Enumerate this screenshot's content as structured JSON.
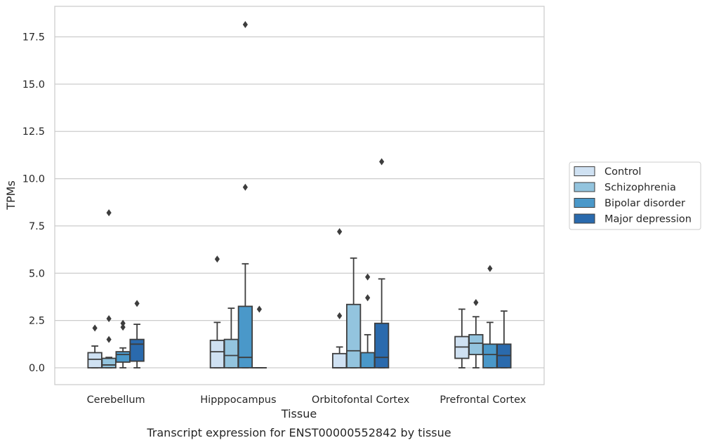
{
  "chart_data": {
    "type": "box",
    "xlabel": "Tissue",
    "ylabel": "TPMs",
    "caption": "Transcript expression for ENST00000552842 by tissue",
    "categories": [
      "Cerebellum",
      "Hipppocampus",
      "Orbitofontal Cortex",
      "Prefrontal Cortex"
    ],
    "ylim": [
      -0.9,
      19.2
    ],
    "yticks": [
      0.0,
      2.5,
      5.0,
      7.5,
      10.0,
      12.5,
      15.0,
      17.5
    ],
    "ytick_labels": [
      "0.0",
      "2.5",
      "5.0",
      "7.5",
      "10.0",
      "12.5",
      "15.0",
      "17.5"
    ],
    "grid": "horizontal",
    "legend_position": "right",
    "series": [
      {
        "name": "Control",
        "color": "#cfe1f2",
        "boxes": [
          {
            "whisker_low": 0.0,
            "q1": 0.0,
            "median": 0.45,
            "q3": 0.8,
            "whisker_high": 1.15,
            "outliers": [
              2.1
            ]
          },
          {
            "whisker_low": 0.0,
            "q1": 0.0,
            "median": 0.85,
            "q3": 1.45,
            "whisker_high": 2.4,
            "outliers": [
              5.75
            ]
          },
          {
            "whisker_low": 0.0,
            "q1": 0.0,
            "median": 0.0,
            "q3": 0.75,
            "whisker_high": 1.1,
            "outliers": [
              2.75,
              7.2
            ]
          },
          {
            "whisker_low": 0.0,
            "q1": 0.5,
            "median": 1.1,
            "q3": 1.65,
            "whisker_high": 3.1,
            "outliers": []
          }
        ]
      },
      {
        "name": "Schizophrenia",
        "color": "#93c4de",
        "boxes": [
          {
            "whisker_low": 0.0,
            "q1": 0.0,
            "median": 0.15,
            "q3": 0.5,
            "whisker_high": 0.55,
            "outliers": [
              1.5,
              2.6,
              8.2
            ]
          },
          {
            "whisker_low": 0.0,
            "q1": 0.0,
            "median": 0.65,
            "q3": 1.5,
            "whisker_high": 3.15,
            "outliers": []
          },
          {
            "whisker_low": 0.0,
            "q1": 0.0,
            "median": 0.9,
            "q3": 3.35,
            "whisker_high": 5.8,
            "outliers": []
          },
          {
            "whisker_low": 0.0,
            "q1": 0.7,
            "median": 1.3,
            "q3": 1.75,
            "whisker_high": 2.7,
            "outliers": [
              3.45
            ]
          }
        ]
      },
      {
        "name": "Bipolar disorder",
        "color": "#4a98c9",
        "boxes": [
          {
            "whisker_low": 0.0,
            "q1": 0.3,
            "median": 0.7,
            "q3": 0.85,
            "whisker_high": 1.05,
            "outliers": [
              2.15,
              2.35
            ]
          },
          {
            "whisker_low": 0.0,
            "q1": 0.0,
            "median": 0.55,
            "q3": 3.25,
            "whisker_high": 5.5,
            "outliers": [
              9.55,
              18.15
            ]
          },
          {
            "whisker_low": 0.0,
            "q1": 0.0,
            "median": 0.0,
            "q3": 0.8,
            "whisker_high": 1.75,
            "outliers": [
              3.7,
              4.8
            ]
          },
          {
            "whisker_low": 0.0,
            "q1": 0.0,
            "median": 0.7,
            "q3": 1.25,
            "whisker_high": 2.4,
            "outliers": [
              5.25
            ]
          }
        ]
      },
      {
        "name": "Major depression",
        "color": "#2a6aad",
        "boxes": [
          {
            "whisker_low": 0.0,
            "q1": 0.35,
            "median": 1.25,
            "q3": 1.5,
            "whisker_high": 2.3,
            "outliers": [
              3.4
            ]
          },
          {
            "whisker_low": 0.0,
            "q1": 0.0,
            "median": 0.0,
            "q3": 0.0,
            "whisker_high": 0.0,
            "outliers": [
              3.1
            ]
          },
          {
            "whisker_low": 0.0,
            "q1": 0.0,
            "median": 0.55,
            "q3": 2.35,
            "whisker_high": 4.7,
            "outliers": [
              10.9
            ]
          },
          {
            "whisker_low": 0.0,
            "q1": 0.0,
            "median": 0.65,
            "q3": 1.25,
            "whisker_high": 3.0,
            "outliers": []
          }
        ]
      }
    ]
  }
}
